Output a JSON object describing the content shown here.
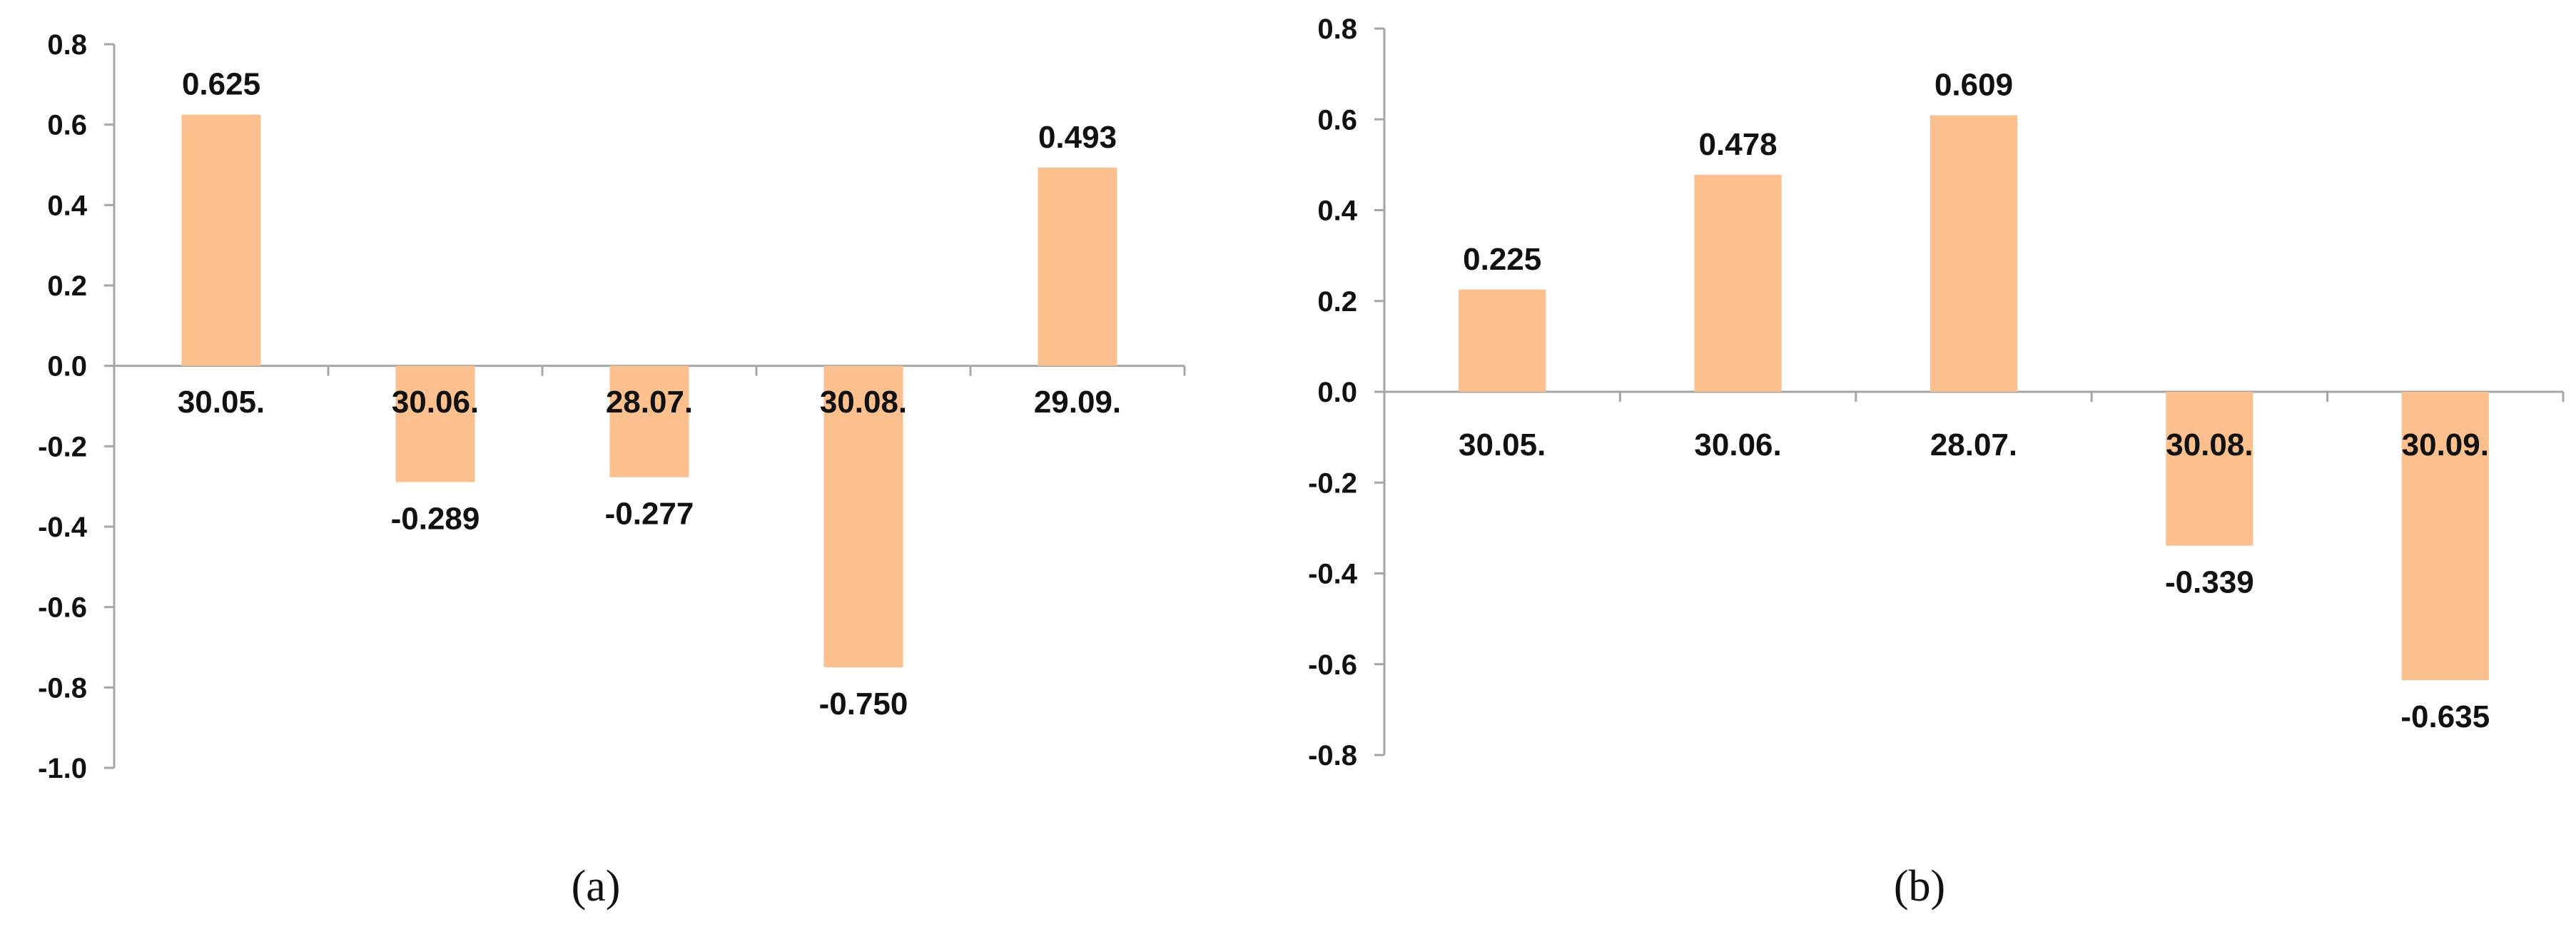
{
  "chart_data": [
    {
      "type": "bar",
      "panel_label": "(a)",
      "categories": [
        "30.05.",
        "30.06.",
        "28.07.",
        "30.08.",
        "29.09."
      ],
      "values": [
        0.625,
        -0.289,
        -0.277,
        -0.75,
        0.493
      ],
      "value_labels": [
        "0.625",
        "-0.289",
        "-0.277",
        "-0.750",
        "0.493"
      ],
      "ylim": [
        -1.0,
        0.8
      ],
      "yticks": [
        0.8,
        0.6,
        0.4,
        0.2,
        0.0,
        -0.2,
        -0.4,
        -0.6,
        -0.8,
        -1.0
      ],
      "ytick_labels": [
        "0.8",
        "0.6",
        "0.4",
        "0.2",
        "0.0",
        "-0.2",
        "-0.4",
        "-0.6",
        "-0.8",
        "-1.0"
      ],
      "bar_color": "#FCC08E",
      "grid": false,
      "legend": "none"
    },
    {
      "type": "bar",
      "panel_label": "(b)",
      "categories": [
        "30.05.",
        "30.06.",
        "28.07.",
        "30.08.",
        "30.09."
      ],
      "values": [
        0.225,
        0.478,
        0.609,
        -0.339,
        -0.635
      ],
      "value_labels": [
        "0.225",
        "0.478",
        "0.609",
        "-0.339",
        "-0.635"
      ],
      "ylim": [
        -0.8,
        0.8
      ],
      "yticks": [
        0.8,
        0.6,
        0.4,
        0.2,
        0.0,
        -0.2,
        -0.4,
        -0.6,
        -0.8
      ],
      "ytick_labels": [
        "0.8",
        "0.6",
        "0.4",
        "0.2",
        "0.0",
        "-0.2",
        "-0.4",
        "-0.6",
        "-0.8"
      ],
      "bar_color": "#FCC08E",
      "grid": false,
      "legend": "none"
    }
  ]
}
